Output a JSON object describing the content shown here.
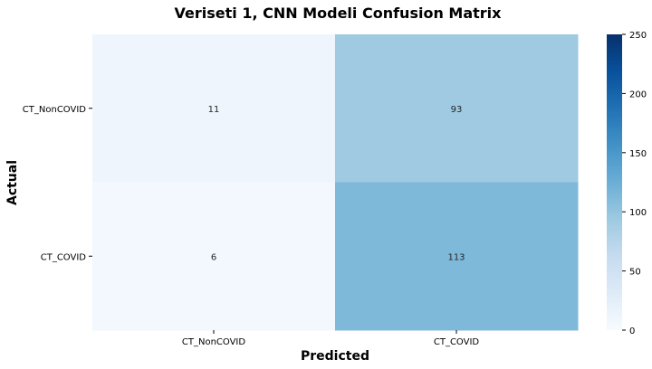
{
  "chart_data": {
    "type": "heatmap",
    "title": "Veriseti 1, CNN Modeli Confusion Matrix",
    "xlabel": "Predicted",
    "ylabel": "Actual",
    "x_categories": [
      "CT_NonCOVID",
      "CT_COVID"
    ],
    "y_categories": [
      "CT_NonCOVID",
      "CT_COVID"
    ],
    "values": [
      [
        11,
        93
      ],
      [
        6,
        113
      ]
    ],
    "colorscale": "Blues",
    "color_range": [
      0,
      250
    ],
    "colorbar_ticks": [
      0,
      50,
      100,
      150,
      200,
      250
    ],
    "colorbar_tick_labels": [
      "0",
      "50",
      "100",
      "150",
      "200",
      "250"
    ]
  }
}
